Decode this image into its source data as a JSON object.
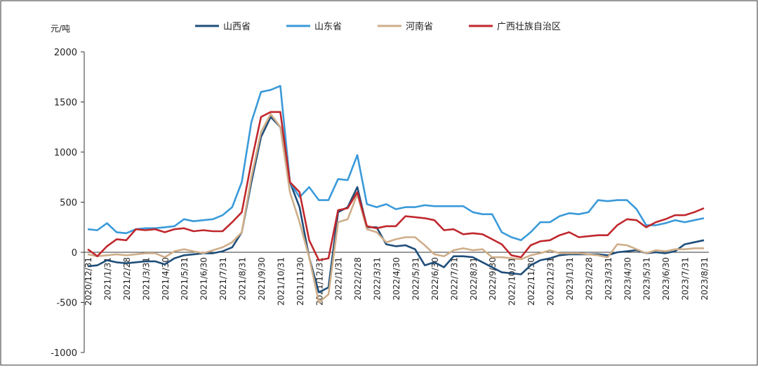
{
  "chart_data": {
    "type": "line",
    "y_label": "元/吨",
    "categories": [
      "2020/12/31",
      null,
      "2021/1/31",
      null,
      "2021/2/28",
      null,
      "2021/3/31",
      null,
      "2021/4/30",
      null,
      "2021/5/31",
      null,
      "2021/6/30",
      null,
      "2021/7/31",
      null,
      "2021/8/31",
      null,
      "2021/9/30",
      null,
      "2021/10/31",
      null,
      "2021/11/30",
      null,
      "2021/12/31",
      null,
      "2022/1/31",
      null,
      "2022/2/28",
      null,
      "2022/3/31",
      null,
      "2022/4/30",
      null,
      "2022/5/31",
      null,
      "2022/6/30",
      null,
      "2022/7/31",
      null,
      "2022/8/31",
      null,
      "2022/9/30",
      null,
      "2022/10/31",
      null,
      "2022/11/30",
      null,
      "2022/12/31",
      null,
      "2023/1/31",
      null,
      "2023/2/28",
      null,
      "2023/3/31",
      null,
      "2023/4/30",
      null,
      "2023/5/31",
      null,
      "2023/6/30",
      null,
      "2023/7/31",
      null,
      "2023/8/31"
    ],
    "series": [
      {
        "name": "山西省",
        "color": "#1f4e79",
        "values": [
          -140,
          -130,
          -80,
          -100,
          -110,
          -100,
          -90,
          -90,
          -120,
          -60,
          -30,
          -20,
          -10,
          -10,
          10,
          50,
          200,
          700,
          1150,
          1350,
          1250,
          700,
          450,
          -50,
          -400,
          -350,
          400,
          450,
          650,
          250,
          250,
          80,
          60,
          70,
          30,
          -130,
          -100,
          -150,
          -40,
          -40,
          -50,
          -100,
          -150,
          -200,
          -210,
          -220,
          -130,
          -80,
          -60,
          -30,
          -20,
          -20,
          -20,
          -20,
          -30,
          0,
          10,
          20,
          -10,
          0,
          -10,
          10,
          80,
          100,
          120
        ]
      },
      {
        "name": "山东省",
        "color": "#3a9ad9",
        "values": [
          230,
          220,
          290,
          200,
          190,
          230,
          240,
          240,
          250,
          260,
          330,
          310,
          320,
          330,
          370,
          450,
          700,
          1300,
          1600,
          1620,
          1660,
          700,
          550,
          650,
          520,
          520,
          730,
          720,
          970,
          480,
          450,
          480,
          430,
          450,
          450,
          470,
          460,
          460,
          460,
          460,
          400,
          380,
          380,
          200,
          150,
          120,
          200,
          300,
          300,
          360,
          390,
          380,
          400,
          520,
          510,
          520,
          520,
          430,
          270,
          270,
          290,
          320,
          300,
          320,
          340
        ]
      },
      {
        "name": "河南省",
        "color": "#cfae8a",
        "values": [
          -20,
          -40,
          -30,
          -20,
          -30,
          -20,
          -10,
          -10,
          -50,
          10,
          30,
          10,
          -10,
          20,
          50,
          100,
          200,
          750,
          1200,
          1380,
          1250,
          600,
          300,
          -50,
          -500,
          -420,
          300,
          330,
          580,
          230,
          200,
          100,
          130,
          150,
          150,
          70,
          -20,
          -40,
          20,
          40,
          20,
          30,
          -50,
          -50,
          -60,
          -70,
          -30,
          -10,
          20,
          -10,
          -10,
          -10,
          -20,
          -30,
          -50,
          80,
          70,
          30,
          -10,
          20,
          10,
          30,
          30,
          40,
          40
        ]
      },
      {
        "name": "广西壮族自治区",
        "color": "#c0282d",
        "values": [
          30,
          -40,
          60,
          130,
          120,
          230,
          220,
          230,
          200,
          230,
          240,
          210,
          220,
          210,
          210,
          300,
          400,
          900,
          1350,
          1400,
          1400,
          700,
          600,
          120,
          -80,
          -60,
          420,
          440,
          600,
          260,
          240,
          260,
          260,
          360,
          350,
          340,
          320,
          220,
          230,
          180,
          190,
          180,
          130,
          80,
          -30,
          -50,
          70,
          110,
          120,
          170,
          200,
          150,
          160,
          170,
          170,
          270,
          330,
          320,
          250,
          300,
          330,
          370,
          370,
          400,
          440
        ]
      }
    ],
    "ylim": [
      -1000,
      2000
    ],
    "yticks": [
      -1000,
      -500,
      0,
      500,
      1000,
      1500,
      2000
    ],
    "legend": "top"
  }
}
